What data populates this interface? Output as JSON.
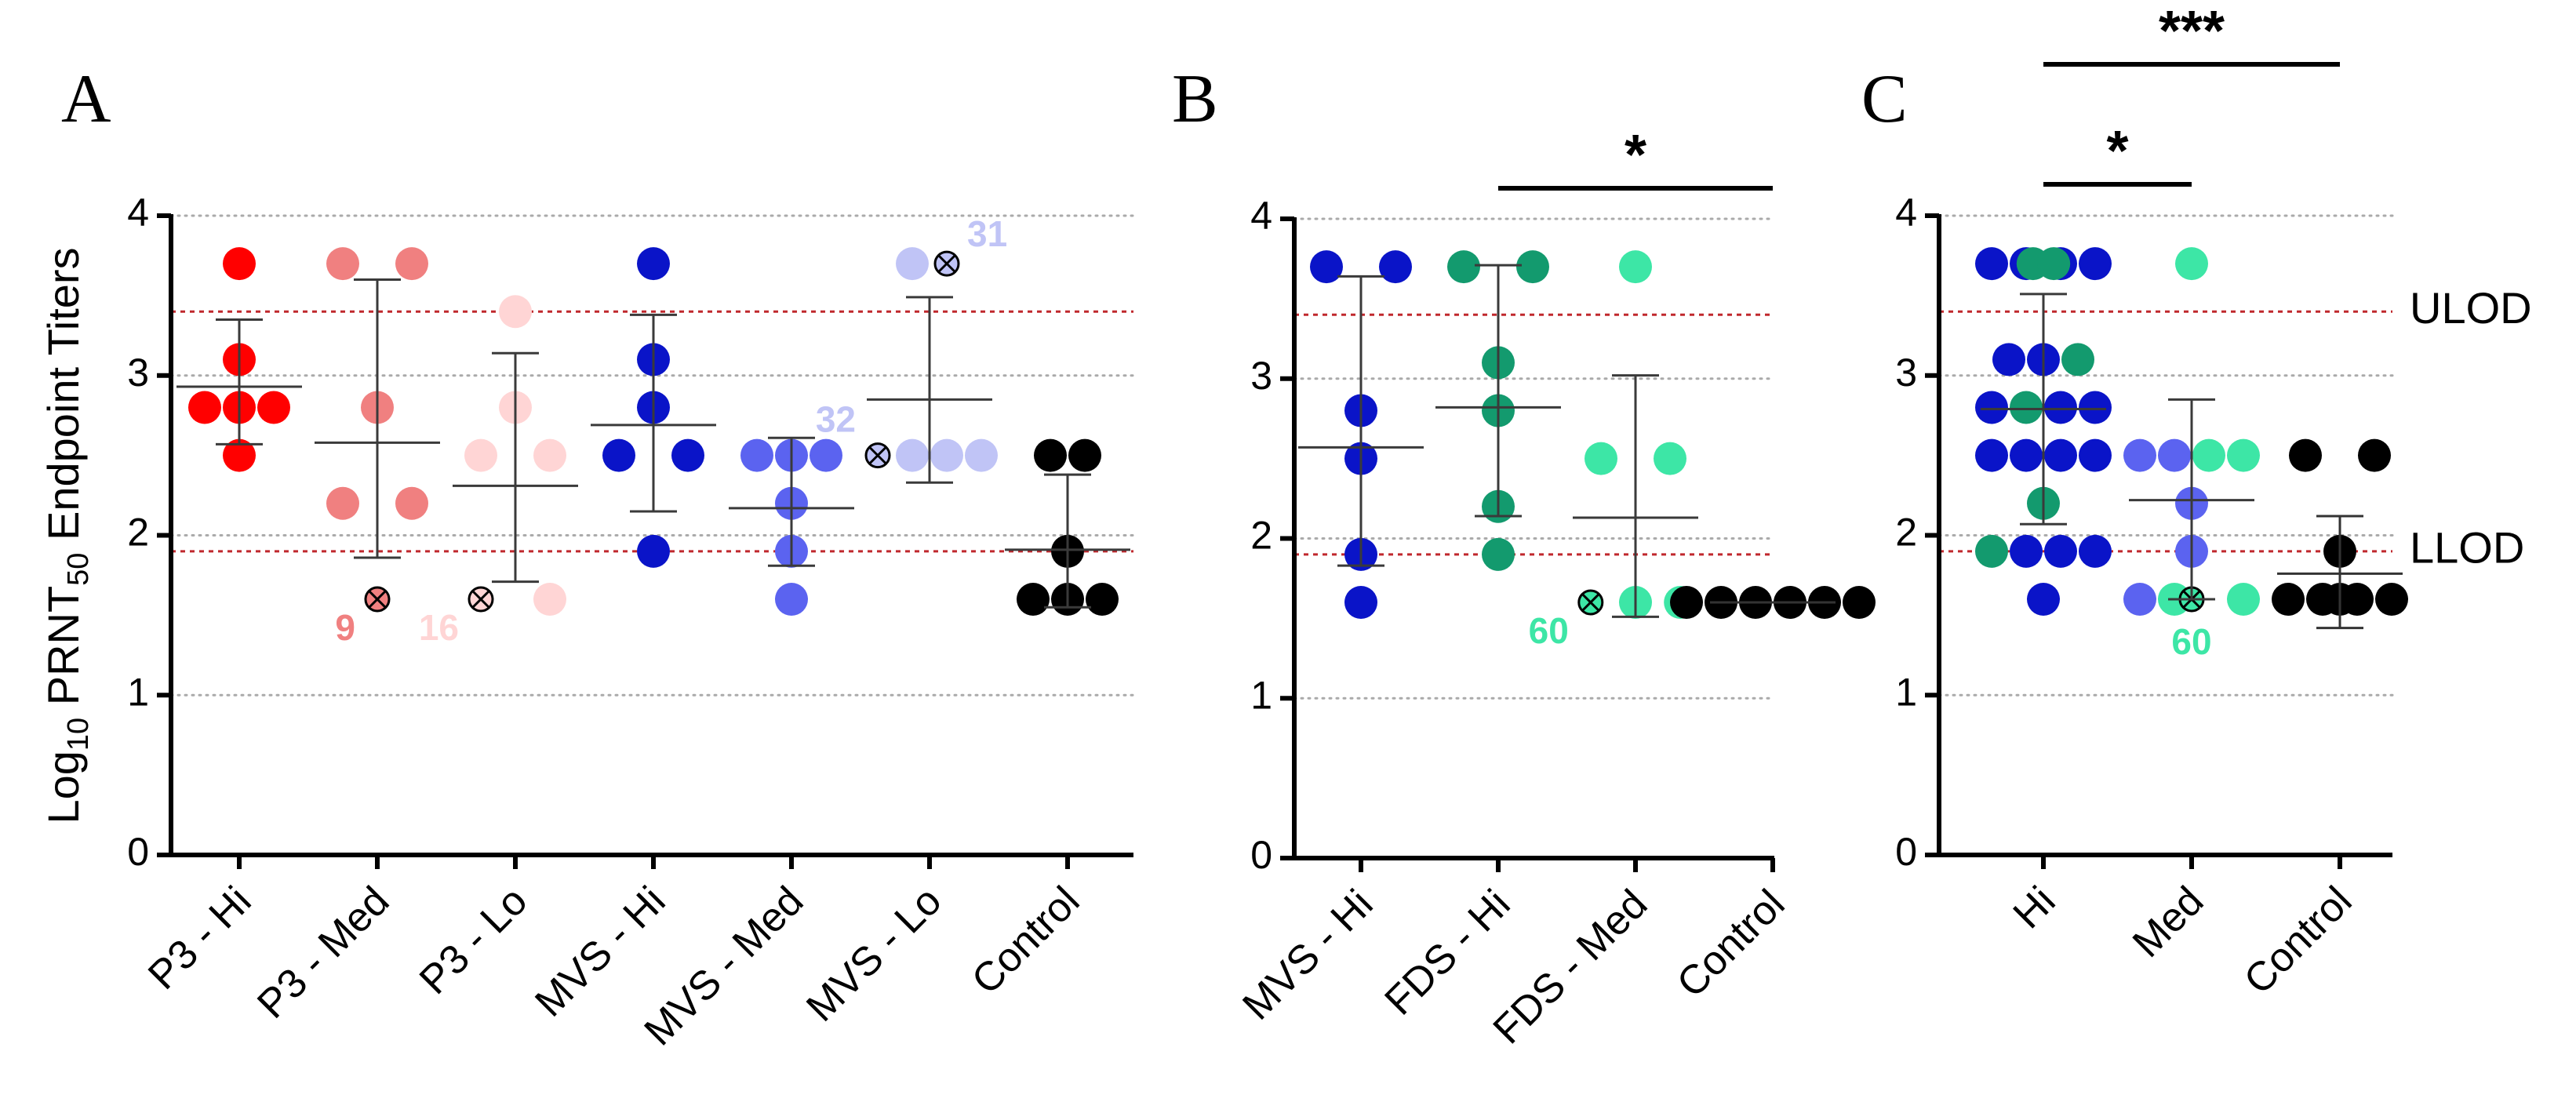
{
  "ylabel": {
    "prefix": "Log",
    "sub10": "10",
    "main": " PRNT",
    "sub50": "50",
    "suffix": " Endpoint Titers"
  },
  "lod_labels": {
    "ulod": "ULOD",
    "llod": "LLOD"
  },
  "colors": {
    "p3_hi": "#ff0000",
    "p3_med": "#f08080",
    "p3_lo": "#ffd5d5",
    "mvs_hi": "#0a14c8",
    "mvs_med": "#5b63f0",
    "mvs_lo": "#c0c4f6",
    "fds_hi": "#139a6e",
    "fds_med": "#3de6a6",
    "control": "#000000",
    "lod_line": "#c0282d",
    "grid": "#aaaaaa",
    "axis": "#000000"
  },
  "chart_data": [
    {
      "type": "scatter",
      "panel": "A",
      "ylim": [
        0,
        4
      ],
      "yticks": [
        "0",
        "1",
        "2",
        "3",
        "4"
      ],
      "ulod": 3.4,
      "llod": 1.9,
      "grid": true,
      "groups": [
        {
          "label": "P3 - Hi",
          "color": "p3_hi",
          "mean": 2.93,
          "sd_low": 2.57,
          "sd_high": 3.35,
          "points": [
            {
              "y": 3.7,
              "dx": 0
            },
            {
              "y": 3.1,
              "dx": 0
            },
            {
              "y": 2.8,
              "dx": -1
            },
            {
              "y": 2.8,
              "dx": 0
            },
            {
              "y": 2.8,
              "dx": 1
            },
            {
              "y": 2.5,
              "dx": 0
            }
          ]
        },
        {
          "label": "P3 - Med",
          "color": "p3_med",
          "mean": 2.58,
          "sd_low": 1.86,
          "sd_high": 3.6,
          "points": [
            {
              "y": 3.7,
              "dx": -1
            },
            {
              "y": 3.7,
              "dx": 1
            },
            {
              "y": 2.8,
              "dx": 0
            },
            {
              "y": 2.2,
              "dx": -1
            },
            {
              "y": 2.2,
              "dx": 1
            },
            {
              "y": 1.6,
              "dx": 0,
              "crossed": true
            }
          ],
          "annotation": {
            "text": "9",
            "side": "left"
          }
        },
        {
          "label": "P3 - Lo",
          "color": "p3_lo",
          "mean": 2.31,
          "sd_low": 1.71,
          "sd_high": 3.14,
          "points": [
            {
              "y": 3.4,
              "dx": 0
            },
            {
              "y": 2.8,
              "dx": 0
            },
            {
              "y": 2.5,
              "dx": -1
            },
            {
              "y": 2.5,
              "dx": 1
            },
            {
              "y": 1.6,
              "dx": -1,
              "crossed": true
            },
            {
              "y": 1.6,
              "dx": 1
            }
          ],
          "annotation": {
            "text": "16",
            "side": "left"
          }
        },
        {
          "label": "MVS - Hi",
          "color": "mvs_hi",
          "mean": 2.69,
          "sd_low": 2.15,
          "sd_high": 3.38,
          "points": [
            {
              "y": 3.7,
              "dx": 0
            },
            {
              "y": 3.1,
              "dx": 0
            },
            {
              "y": 2.8,
              "dx": 0
            },
            {
              "y": 2.5,
              "dx": -1
            },
            {
              "y": 2.5,
              "dx": 1
            },
            {
              "y": 1.9,
              "dx": 0
            }
          ]
        },
        {
          "label": "MVS - Med",
          "color": "mvs_med",
          "mean": 2.17,
          "sd_low": 1.81,
          "sd_high": 2.61,
          "points": [
            {
              "y": 2.5,
              "dx": -1
            },
            {
              "y": 2.5,
              "dx": 0
            },
            {
              "y": 2.5,
              "dx": 1
            },
            {
              "y": 2.2,
              "dx": 0
            },
            {
              "y": 1.9,
              "dx": 0
            },
            {
              "y": 1.6,
              "dx": 0
            }
          ]
        },
        {
          "label": "MVS - Lo",
          "color": "mvs_lo",
          "mean": 2.85,
          "sd_low": 2.33,
          "sd_high": 3.49,
          "points": [
            {
              "y": 3.7,
              "dx": -0.5
            },
            {
              "y": 3.7,
              "dx": 0.5,
              "crossed": true
            },
            {
              "y": 2.5,
              "dx": -1.5,
              "crossed": true
            },
            {
              "y": 2.5,
              "dx": -0.5
            },
            {
              "y": 2.5,
              "dx": 0.5
            },
            {
              "y": 2.5,
              "dx": 1.5
            }
          ],
          "annotation": {
            "text": "31",
            "side": "right-top"
          },
          "annotation2": {
            "text": "32",
            "side": "left-bottom"
          }
        },
        {
          "label": "Control",
          "color": "control",
          "mean": 1.91,
          "sd_low": 1.55,
          "sd_high": 2.38,
          "points": [
            {
              "y": 2.5,
              "dx": -0.5
            },
            {
              "y": 2.5,
              "dx": 0.5
            },
            {
              "y": 1.9,
              "dx": 0
            },
            {
              "y": 1.6,
              "dx": -1
            },
            {
              "y": 1.6,
              "dx": 0
            },
            {
              "y": 1.6,
              "dx": 1
            }
          ]
        }
      ]
    },
    {
      "type": "scatter",
      "panel": "B",
      "ylim": [
        0,
        4
      ],
      "yticks": [
        "0",
        "1",
        "2",
        "3",
        "4"
      ],
      "ulod": 3.4,
      "llod": 1.9,
      "grid": true,
      "groups": [
        {
          "label": "MVS - Hi",
          "color": "mvs_hi",
          "mean": 2.57,
          "sd_low": 1.83,
          "sd_high": 3.64,
          "points": [
            {
              "y": 3.7,
              "dx": -1
            },
            {
              "y": 3.7,
              "dx": 1
            },
            {
              "y": 2.8,
              "dx": 0
            },
            {
              "y": 2.5,
              "dx": 0
            },
            {
              "y": 1.9,
              "dx": 0
            },
            {
              "y": 1.6,
              "dx": 0
            }
          ]
        },
        {
          "label": "FDS - Hi",
          "color": "fds_hi",
          "mean": 2.82,
          "sd_low": 2.14,
          "sd_high": 3.71,
          "points": [
            {
              "y": 3.7,
              "dx": -1
            },
            {
              "y": 3.7,
              "dx": 1
            },
            {
              "y": 3.1,
              "dx": 0
            },
            {
              "y": 2.8,
              "dx": 0
            },
            {
              "y": 2.2,
              "dx": 0
            },
            {
              "y": 1.9,
              "dx": 0
            }
          ]
        },
        {
          "label": "FDS - Med",
          "color": "fds_med",
          "mean": 2.13,
          "sd_low": 1.51,
          "sd_high": 3.02,
          "points": [
            {
              "y": 3.7,
              "dx": 0
            },
            {
              "y": 2.5,
              "dx": -1
            },
            {
              "y": 2.5,
              "dx": 1
            },
            {
              "y": 1.6,
              "dx": -1.3,
              "crossed": true
            },
            {
              "y": 1.6,
              "dx": 0
            },
            {
              "y": 1.6,
              "dx": 1.3
            }
          ],
          "annotation": {
            "text": "60",
            "side": "left"
          }
        },
        {
          "label": "Control",
          "color": "control",
          "mean": 1.6,
          "sd_low": 1.6,
          "sd_high": 1.6,
          "points": [
            {
              "y": 1.6,
              "dx": -2.5
            },
            {
              "y": 1.6,
              "dx": -1.5
            },
            {
              "y": 1.6,
              "dx": -0.5
            },
            {
              "y": 1.6,
              "dx": 0.5
            },
            {
              "y": 1.6,
              "dx": 1.5
            },
            {
              "y": 1.6,
              "dx": 2.5
            }
          ]
        }
      ],
      "significance": [
        {
          "from": 1,
          "to": 3,
          "label": "*",
          "level": 1
        }
      ]
    },
    {
      "type": "scatter",
      "panel": "C",
      "ylim": [
        0,
        4
      ],
      "yticks": [
        "0",
        "1",
        "2",
        "3",
        "4"
      ],
      "ulod": 3.4,
      "llod": 1.9,
      "grid": true,
      "groups": [
        {
          "label": "Hi",
          "mean": 2.79,
          "sd_low": 2.07,
          "sd_high": 3.51,
          "points": [
            {
              "y": 3.7,
              "dx": -1.5,
              "c": "mvs_hi"
            },
            {
              "y": 3.7,
              "dx": -0.5,
              "c": "mvs_hi"
            },
            {
              "y": 3.7,
              "dx": 0.5,
              "c": "mvs_hi"
            },
            {
              "y": 3.7,
              "dx": 1.5,
              "c": "mvs_hi"
            },
            {
              "y": 3.7,
              "dx": -0.3,
              "c": "fds_hi"
            },
            {
              "y": 3.7,
              "dx": 0.3,
              "c": "fds_hi"
            },
            {
              "y": 3.1,
              "dx": -1,
              "c": "mvs_hi"
            },
            {
              "y": 3.1,
              "dx": 1,
              "c": "fds_hi"
            },
            {
              "y": 3.1,
              "dx": 0,
              "c": "mvs_hi"
            },
            {
              "y": 2.8,
              "dx": -1.5,
              "c": "mvs_hi"
            },
            {
              "y": 2.8,
              "dx": -0.5,
              "c": "fds_hi"
            },
            {
              "y": 2.8,
              "dx": 0.5,
              "c": "mvs_hi"
            },
            {
              "y": 2.8,
              "dx": 1.5,
              "c": "mvs_hi"
            },
            {
              "y": 2.5,
              "dx": -1.5,
              "c": "mvs_hi"
            },
            {
              "y": 2.5,
              "dx": -0.5,
              "c": "mvs_hi"
            },
            {
              "y": 2.5,
              "dx": 0.5,
              "c": "mvs_hi"
            },
            {
              "y": 2.5,
              "dx": 1.5,
              "c": "mvs_hi"
            },
            {
              "y": 2.2,
              "dx": 0,
              "c": "fds_hi"
            },
            {
              "y": 1.9,
              "dx": -1.5,
              "c": "fds_hi"
            },
            {
              "y": 1.9,
              "dx": -0.5,
              "c": "mvs_hi"
            },
            {
              "y": 1.9,
              "dx": 0.5,
              "c": "mvs_hi"
            },
            {
              "y": 1.9,
              "dx": 1.5,
              "c": "mvs_hi"
            },
            {
              "y": 1.6,
              "dx": 0,
              "c": "mvs_hi"
            }
          ]
        },
        {
          "label": "Med",
          "mean": 2.22,
          "sd_low": 1.6,
          "sd_high": 2.85,
          "points": [
            {
              "y": 3.7,
              "dx": 0,
              "c": "fds_med"
            },
            {
              "y": 2.5,
              "dx": -1.5,
              "c": "mvs_med"
            },
            {
              "y": 2.5,
              "dx": -0.5,
              "c": "mvs_med"
            },
            {
              "y": 2.5,
              "dx": 0.5,
              "c": "fds_med"
            },
            {
              "y": 2.5,
              "dx": 1.5,
              "c": "fds_med"
            },
            {
              "y": 2.2,
              "dx": 0,
              "c": "mvs_med"
            },
            {
              "y": 1.9,
              "dx": 0,
              "c": "mvs_med"
            },
            {
              "y": 1.6,
              "dx": -1.5,
              "c": "mvs_med"
            },
            {
              "y": 1.6,
              "dx": 1.5,
              "c": "fds_med"
            },
            {
              "y": 1.6,
              "dx": -0.5,
              "c": "fds_med"
            },
            {
              "y": 1.6,
              "dx": 0,
              "c": "fds_med",
              "crossed": true
            }
          ],
          "annotation": {
            "text": "60",
            "side": "below",
            "color": "fds_med"
          }
        },
        {
          "label": "Control",
          "mean": 1.76,
          "sd_low": 1.42,
          "sd_high": 2.12,
          "points": [
            {
              "y": 2.5,
              "dx": -1,
              "c": "control"
            },
            {
              "y": 2.5,
              "dx": 1,
              "c": "control"
            },
            {
              "y": 1.9,
              "dx": 0,
              "c": "control"
            },
            {
              "y": 1.6,
              "dx": -1.5,
              "c": "control"
            },
            {
              "y": 1.6,
              "dx": -0.5,
              "c": "control"
            },
            {
              "y": 1.6,
              "dx": 0.5,
              "c": "control"
            },
            {
              "y": 1.6,
              "dx": 1.5,
              "c": "control"
            },
            {
              "y": 1.6,
              "dx": 0,
              "c": "control"
            }
          ]
        }
      ],
      "significance": [
        {
          "from": 0,
          "to": 1,
          "label": "*",
          "level": 1
        },
        {
          "from": 0,
          "to": 2,
          "label": "***",
          "level": 2
        }
      ]
    }
  ]
}
